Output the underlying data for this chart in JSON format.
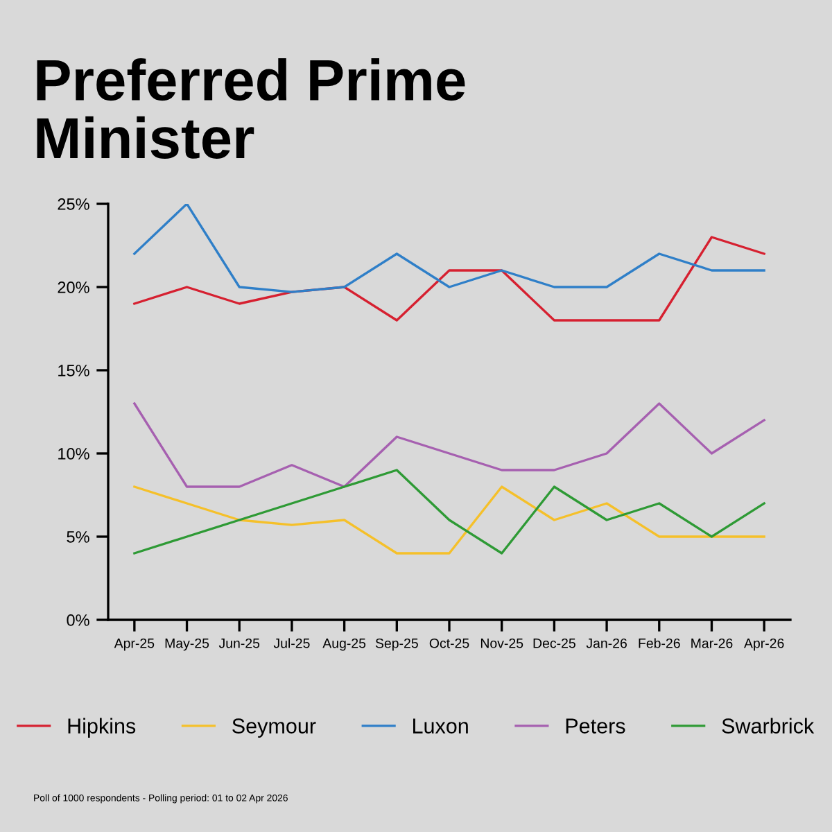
{
  "chart_data": {
    "type": "line",
    "title": "Preferred Prime\nMinister",
    "categories": [
      "Apr-25",
      "May-25",
      "Jun-25",
      "Jul-25",
      "Aug-25",
      "Sep-25",
      "Oct-25",
      "Nov-25",
      "Dec-25",
      "Jan-26",
      "Feb-26",
      "Mar-26",
      "Apr-26"
    ],
    "series": [
      {
        "name": "Hipkins",
        "color": "#d62030",
        "values": [
          19,
          20,
          19,
          19.7,
          20,
          18,
          21,
          21,
          18,
          18,
          18,
          23,
          22
        ]
      },
      {
        "name": "Seymour",
        "color": "#f5c02a",
        "values": [
          8,
          7,
          6,
          5.7,
          6,
          4,
          4,
          8,
          6,
          7,
          5,
          5,
          5
        ]
      },
      {
        "name": "Luxon",
        "color": "#2f7fc8",
        "values": [
          22,
          25,
          20,
          19.7,
          20,
          22,
          20,
          21,
          20,
          20,
          22,
          21,
          21
        ]
      },
      {
        "name": "Peters",
        "color": "#a660b0",
        "values": [
          13,
          8,
          8,
          9.3,
          8,
          11,
          10,
          9,
          9,
          10,
          13,
          10,
          12
        ]
      },
      {
        "name": "Swarbrick",
        "color": "#2e9a35",
        "values": [
          4,
          5,
          6,
          7,
          8,
          9,
          6,
          4,
          8,
          6,
          7,
          5,
          7
        ]
      }
    ],
    "ylim": [
      0,
      25
    ],
    "yticks": [
      {
        "value": 0,
        "label": "0%"
      },
      {
        "value": 5,
        "label": "5%"
      },
      {
        "value": 10,
        "label": "10%"
      },
      {
        "value": 15,
        "label": "15%"
      },
      {
        "value": 20,
        "label": "20%"
      },
      {
        "value": 25,
        "label": "25%"
      }
    ],
    "legend": "bottom",
    "grid": false,
    "marker": "none",
    "line_style": "solid",
    "annotations": [
      "Poll of 1000 respondents - Polling period: 01 to 02 Apr 2026"
    ]
  }
}
